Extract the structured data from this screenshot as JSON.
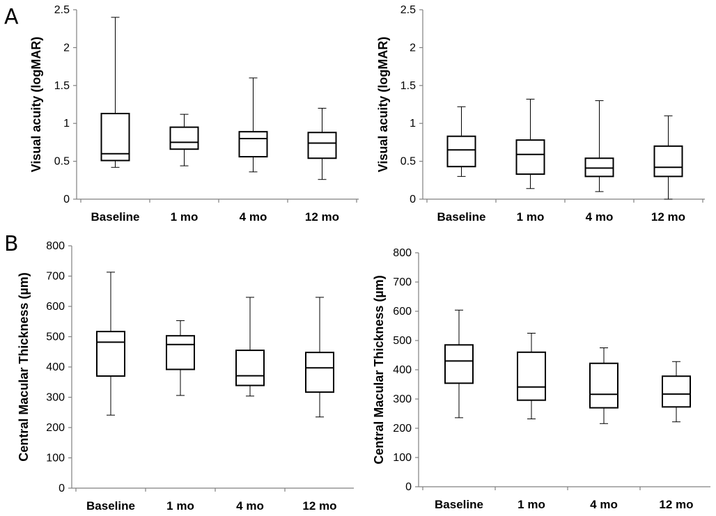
{
  "panel_labels": [
    "A",
    "B"
  ],
  "chart_data": [
    {
      "type": "box",
      "panel": "A",
      "ylabel": "Visual acuity (logMAR)",
      "ylim": [
        0,
        2.5
      ],
      "yticks": [
        "0",
        "0.5",
        "1",
        "1.5",
        "2",
        "2.5"
      ],
      "categories": [
        "Baseline",
        "1 mo",
        "4 mo",
        "12 mo"
      ],
      "boxes": [
        {
          "min": 0.42,
          "q1": 0.51,
          "median": 0.6,
          "q3": 1.13,
          "max": 2.4
        },
        {
          "min": 0.44,
          "q1": 0.66,
          "median": 0.75,
          "q3": 0.95,
          "max": 1.12
        },
        {
          "min": 0.36,
          "q1": 0.56,
          "median": 0.8,
          "q3": 0.89,
          "max": 1.6
        },
        {
          "min": 0.26,
          "q1": 0.54,
          "median": 0.74,
          "q3": 0.88,
          "max": 1.2
        }
      ]
    },
    {
      "type": "box",
      "panel": "A",
      "ylabel": "Visual acuity (logMAR)",
      "ylim": [
        0,
        2.5
      ],
      "yticks": [
        "0",
        "0.5",
        "1",
        "1.5",
        "2",
        "2.5"
      ],
      "categories": [
        "Baseline",
        "1 mo",
        "4 mo",
        "12 mo"
      ],
      "boxes": [
        {
          "min": 0.3,
          "q1": 0.43,
          "median": 0.65,
          "q3": 0.83,
          "max": 1.22
        },
        {
          "min": 0.14,
          "q1": 0.33,
          "median": 0.59,
          "q3": 0.78,
          "max": 1.32
        },
        {
          "min": 0.1,
          "q1": 0.3,
          "median": 0.41,
          "q3": 0.54,
          "max": 1.3
        },
        {
          "min": 0.0,
          "q1": 0.3,
          "median": 0.42,
          "q3": 0.7,
          "max": 1.1
        }
      ]
    },
    {
      "type": "box",
      "panel": "B",
      "ylabel": "Central Macular Thickness (µm)",
      "ylim": [
        0,
        800
      ],
      "yticks": [
        "0",
        "100",
        "200",
        "300",
        "400",
        "500",
        "600",
        "700",
        "800"
      ],
      "categories": [
        "Baseline",
        "1 mo",
        "4 mo",
        "12 mo"
      ],
      "boxes": [
        {
          "min": 241,
          "q1": 370,
          "median": 482,
          "q3": 517,
          "max": 713
        },
        {
          "min": 306,
          "q1": 392,
          "median": 474,
          "q3": 503,
          "max": 553
        },
        {
          "min": 304,
          "q1": 339,
          "median": 371,
          "q3": 455,
          "max": 630
        },
        {
          "min": 235,
          "q1": 317,
          "median": 397,
          "q3": 448,
          "max": 630
        }
      ]
    },
    {
      "type": "box",
      "panel": "B",
      "ylabel": "Central Macular Thickness (µm)",
      "ylim": [
        0,
        800
      ],
      "yticks": [
        "0",
        "100",
        "200",
        "300",
        "400",
        "500",
        "600",
        "700",
        "800"
      ],
      "categories": [
        "Baseline",
        "1 mo",
        "4 mo",
        "12 mo"
      ],
      "boxes": [
        {
          "min": 236,
          "q1": 354,
          "median": 430,
          "q3": 485,
          "max": 604
        },
        {
          "min": 232,
          "q1": 296,
          "median": 341,
          "q3": 460,
          "max": 525
        },
        {
          "min": 216,
          "q1": 270,
          "median": 316,
          "q3": 422,
          "max": 475
        },
        {
          "min": 222,
          "q1": 273,
          "median": 317,
          "q3": 378,
          "max": 428
        }
      ]
    }
  ]
}
